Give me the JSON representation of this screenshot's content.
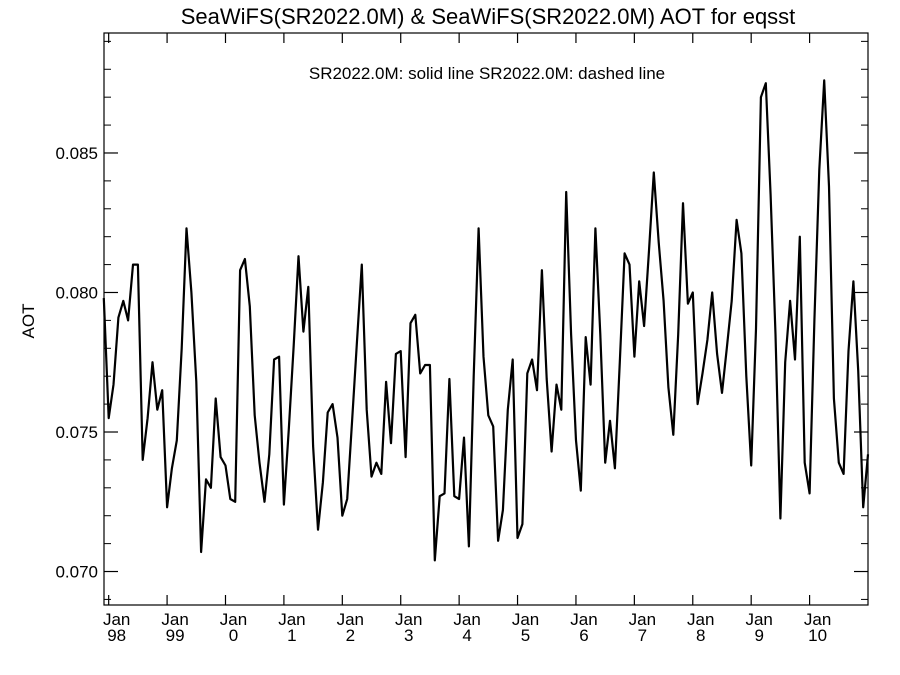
{
  "chart_data": {
    "type": "line",
    "title": "SeaWiFS(SR2022.0M) & SeaWiFS(SR2022.0M)  AOT for eqsst",
    "legend_text": "SR2022.0M: solid line   SR2022.0M: dashed line",
    "ylabel": "AOT",
    "xlabel": "",
    "ylim": [
      0.0688,
      0.0893
    ],
    "xlim": [
      1997.92,
      2011.0
    ],
    "yticks": [
      {
        "value": 0.07,
        "label": "0.070"
      },
      {
        "value": 0.075,
        "label": "0.075"
      },
      {
        "value": 0.08,
        "label": "0.080"
      },
      {
        "value": 0.085,
        "label": "0.085"
      }
    ],
    "xticks": [
      {
        "value": 1998,
        "line1": "Jan",
        "line2": "98"
      },
      {
        "value": 1999,
        "line1": "Jan",
        "line2": "99"
      },
      {
        "value": 2000,
        "line1": "Jan",
        "line2": "0"
      },
      {
        "value": 2001,
        "line1": "Jan",
        "line2": "1"
      },
      {
        "value": 2002,
        "line1": "Jan",
        "line2": "2"
      },
      {
        "value": 2003,
        "line1": "Jan",
        "line2": "3"
      },
      {
        "value": 2004,
        "line1": "Jan",
        "line2": "4"
      },
      {
        "value": 2005,
        "line1": "Jan",
        "line2": "5"
      },
      {
        "value": 2006,
        "line1": "Jan",
        "line2": "6"
      },
      {
        "value": 2007,
        "line1": "Jan",
        "line2": "7"
      },
      {
        "value": 2008,
        "line1": "Jan",
        "line2": "8"
      },
      {
        "value": 2009,
        "line1": "Jan",
        "line2": "9"
      },
      {
        "value": 2010,
        "line1": "Jan",
        "line2": "10"
      }
    ],
    "series": [
      {
        "style": "solid",
        "color": "#000000",
        "points": [
          [
            1997.917,
            0.0798
          ],
          [
            1998.0,
            0.0755
          ],
          [
            1998.083,
            0.0767
          ],
          [
            1998.167,
            0.0791
          ],
          [
            1998.25,
            0.0797
          ],
          [
            1998.333,
            0.079
          ],
          [
            1998.417,
            0.081
          ],
          [
            1998.5,
            0.081
          ],
          [
            1998.583,
            0.074
          ],
          [
            1998.667,
            0.0755
          ],
          [
            1998.75,
            0.0775
          ],
          [
            1998.833,
            0.0758
          ],
          [
            1998.917,
            0.0765
          ],
          [
            1999.0,
            0.0723
          ],
          [
            1999.083,
            0.0737
          ],
          [
            1999.167,
            0.0747
          ],
          [
            1999.25,
            0.078
          ],
          [
            1999.333,
            0.0823
          ],
          [
            1999.417,
            0.08
          ],
          [
            1999.5,
            0.0768
          ],
          [
            1999.583,
            0.0707
          ],
          [
            1999.667,
            0.0733
          ],
          [
            1999.75,
            0.073
          ],
          [
            1999.833,
            0.0762
          ],
          [
            1999.917,
            0.0741
          ],
          [
            2000.0,
            0.0738
          ],
          [
            2000.083,
            0.0726
          ],
          [
            2000.167,
            0.0725
          ],
          [
            2000.25,
            0.0808
          ],
          [
            2000.333,
            0.0812
          ],
          [
            2000.417,
            0.0795
          ],
          [
            2000.5,
            0.0756
          ],
          [
            2000.583,
            0.0739
          ],
          [
            2000.667,
            0.0725
          ],
          [
            2000.75,
            0.0742
          ],
          [
            2000.833,
            0.0776
          ],
          [
            2000.917,
            0.0777
          ],
          [
            2001.0,
            0.0724
          ],
          [
            2001.083,
            0.0751
          ],
          [
            2001.167,
            0.0781
          ],
          [
            2001.25,
            0.0813
          ],
          [
            2001.333,
            0.0786
          ],
          [
            2001.417,
            0.0802
          ],
          [
            2001.5,
            0.0745
          ],
          [
            2001.583,
            0.0715
          ],
          [
            2001.667,
            0.0732
          ],
          [
            2001.75,
            0.0757
          ],
          [
            2001.833,
            0.076
          ],
          [
            2001.917,
            0.0748
          ],
          [
            2002.0,
            0.072
          ],
          [
            2002.083,
            0.0726
          ],
          [
            2002.167,
            0.0754
          ],
          [
            2002.25,
            0.0782
          ],
          [
            2002.333,
            0.081
          ],
          [
            2002.417,
            0.0758
          ],
          [
            2002.5,
            0.0734
          ],
          [
            2002.583,
            0.0739
          ],
          [
            2002.667,
            0.0735
          ],
          [
            2002.75,
            0.0768
          ],
          [
            2002.833,
            0.0746
          ],
          [
            2002.917,
            0.0778
          ],
          [
            2003.0,
            0.0779
          ],
          [
            2003.083,
            0.0741
          ],
          [
            2003.167,
            0.0789
          ],
          [
            2003.25,
            0.0792
          ],
          [
            2003.333,
            0.0771
          ],
          [
            2003.417,
            0.0774
          ],
          [
            2003.5,
            0.0774
          ],
          [
            2003.583,
            0.0704
          ],
          [
            2003.667,
            0.0727
          ],
          [
            2003.75,
            0.0728
          ],
          [
            2003.833,
            0.0769
          ],
          [
            2003.917,
            0.0727
          ],
          [
            2004.0,
            0.0726
          ],
          [
            2004.083,
            0.0748
          ],
          [
            2004.167,
            0.0709
          ],
          [
            2004.25,
            0.077
          ],
          [
            2004.333,
            0.0823
          ],
          [
            2004.417,
            0.0777
          ],
          [
            2004.5,
            0.0756
          ],
          [
            2004.583,
            0.0752
          ],
          [
            2004.667,
            0.0711
          ],
          [
            2004.75,
            0.0722
          ],
          [
            2004.833,
            0.0758
          ],
          [
            2004.917,
            0.0776
          ],
          [
            2005.0,
            0.0712
          ],
          [
            2005.083,
            0.0717
          ],
          [
            2005.167,
            0.0771
          ],
          [
            2005.25,
            0.0776
          ],
          [
            2005.333,
            0.0765
          ],
          [
            2005.417,
            0.0808
          ],
          [
            2005.5,
            0.0769
          ],
          [
            2005.583,
            0.0743
          ],
          [
            2005.667,
            0.0767
          ],
          [
            2005.75,
            0.0758
          ],
          [
            2005.833,
            0.0836
          ],
          [
            2005.917,
            0.0785
          ],
          [
            2006.0,
            0.0747
          ],
          [
            2006.083,
            0.0729
          ],
          [
            2006.167,
            0.0784
          ],
          [
            2006.25,
            0.0767
          ],
          [
            2006.333,
            0.0823
          ],
          [
            2006.417,
            0.0785
          ],
          [
            2006.5,
            0.0739
          ],
          [
            2006.583,
            0.0754
          ],
          [
            2006.667,
            0.0737
          ],
          [
            2006.75,
            0.0775
          ],
          [
            2006.833,
            0.0814
          ],
          [
            2006.917,
            0.081
          ],
          [
            2007.0,
            0.0777
          ],
          [
            2007.083,
            0.0804
          ],
          [
            2007.167,
            0.0788
          ],
          [
            2007.25,
            0.0815
          ],
          [
            2007.333,
            0.0843
          ],
          [
            2007.417,
            0.0818
          ],
          [
            2007.5,
            0.0797
          ],
          [
            2007.583,
            0.0766
          ],
          [
            2007.667,
            0.0749
          ],
          [
            2007.75,
            0.0785
          ],
          [
            2007.833,
            0.0832
          ],
          [
            2007.917,
            0.0796
          ],
          [
            2008.0,
            0.08
          ],
          [
            2008.083,
            0.076
          ],
          [
            2008.167,
            0.0771
          ],
          [
            2008.25,
            0.0783
          ],
          [
            2008.333,
            0.08
          ],
          [
            2008.417,
            0.0778
          ],
          [
            2008.5,
            0.0764
          ],
          [
            2008.583,
            0.078
          ],
          [
            2008.667,
            0.0797
          ],
          [
            2008.75,
            0.0826
          ],
          [
            2008.833,
            0.0814
          ],
          [
            2008.917,
            0.077
          ],
          [
            2009.0,
            0.0738
          ],
          [
            2009.083,
            0.0787
          ],
          [
            2009.167,
            0.087
          ],
          [
            2009.25,
            0.0875
          ],
          [
            2009.333,
            0.0835
          ],
          [
            2009.417,
            0.0785
          ],
          [
            2009.5,
            0.0719
          ],
          [
            2009.583,
            0.0775
          ],
          [
            2009.667,
            0.0797
          ],
          [
            2009.75,
            0.0776
          ],
          [
            2009.833,
            0.082
          ],
          [
            2009.917,
            0.0739
          ],
          [
            2010.0,
            0.0728
          ],
          [
            2010.083,
            0.079
          ],
          [
            2010.167,
            0.0844
          ],
          [
            2010.25,
            0.0876
          ],
          [
            2010.333,
            0.0838
          ],
          [
            2010.417,
            0.0762
          ],
          [
            2010.5,
            0.0739
          ],
          [
            2010.583,
            0.0735
          ],
          [
            2010.667,
            0.0779
          ],
          [
            2010.75,
            0.0804
          ],
          [
            2010.833,
            0.0772
          ],
          [
            2010.917,
            0.0723
          ],
          [
            2011.0,
            0.0742
          ]
        ]
      }
    ]
  }
}
